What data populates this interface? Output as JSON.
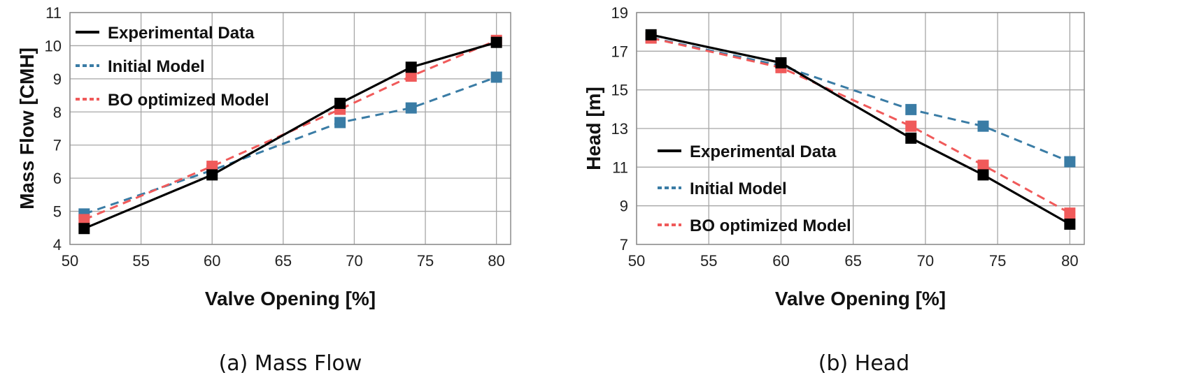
{
  "colors": {
    "experimental": "#000000",
    "initial": "#3a7ca5",
    "bo": "#f05a5a"
  },
  "chart_data": [
    {
      "type": "line",
      "title": "",
      "caption": "(a) Mass Flow",
      "xlabel": "Valve Opening [%]",
      "ylabel": "Mass Flow [CMH]",
      "xlim": [
        50,
        81
      ],
      "ylim": [
        4,
        11
      ],
      "xticks": [
        50,
        55,
        60,
        65,
        70,
        75,
        80
      ],
      "yticks": [
        4,
        5,
        6,
        7,
        8,
        9,
        10,
        11
      ],
      "grid": true,
      "legend_position": "top-left",
      "series": [
        {
          "name": "Experimental Data",
          "color_key": "experimental",
          "dash": "solid",
          "x": [
            51,
            60,
            69,
            74,
            80
          ],
          "y": [
            4.48,
            6.1,
            8.26,
            9.35,
            10.1
          ]
        },
        {
          "name": "Initial Model",
          "color_key": "initial",
          "dash": "dashed",
          "x": [
            51,
            60,
            69,
            74,
            80
          ],
          "y": [
            4.92,
            6.24,
            7.68,
            8.12,
            9.05
          ]
        },
        {
          "name": "BO optimized Model",
          "color_key": "bo",
          "dash": "dashed",
          "x": [
            51,
            60,
            69,
            74,
            80
          ],
          "y": [
            4.75,
            6.36,
            8.08,
            9.08,
            10.16
          ]
        }
      ]
    },
    {
      "type": "line",
      "title": "",
      "caption": "(b) Head",
      "xlabel": "Valve Opening [%]",
      "ylabel": "Head [m]",
      "xlim": [
        50,
        81
      ],
      "ylim": [
        7,
        19
      ],
      "xticks": [
        50,
        55,
        60,
        65,
        70,
        75,
        80
      ],
      "yticks": [
        7,
        9,
        11,
        13,
        15,
        17,
        19
      ],
      "grid": true,
      "legend_position": "bottom-left",
      "series": [
        {
          "name": "Experimental Data",
          "color_key": "experimental",
          "dash": "solid",
          "x": [
            51,
            60,
            69,
            74,
            80
          ],
          "y": [
            17.85,
            16.4,
            12.5,
            10.6,
            8.05
          ]
        },
        {
          "name": "Initial Model",
          "color_key": "initial",
          "dash": "dashed",
          "x": [
            51,
            60,
            69,
            74,
            80
          ],
          "y": [
            17.7,
            16.25,
            13.98,
            13.12,
            11.28
          ]
        },
        {
          "name": "BO optimized Model",
          "color_key": "bo",
          "dash": "dashed",
          "x": [
            51,
            60,
            69,
            74,
            80
          ],
          "y": [
            17.68,
            16.15,
            13.12,
            11.1,
            8.62
          ]
        }
      ]
    }
  ]
}
